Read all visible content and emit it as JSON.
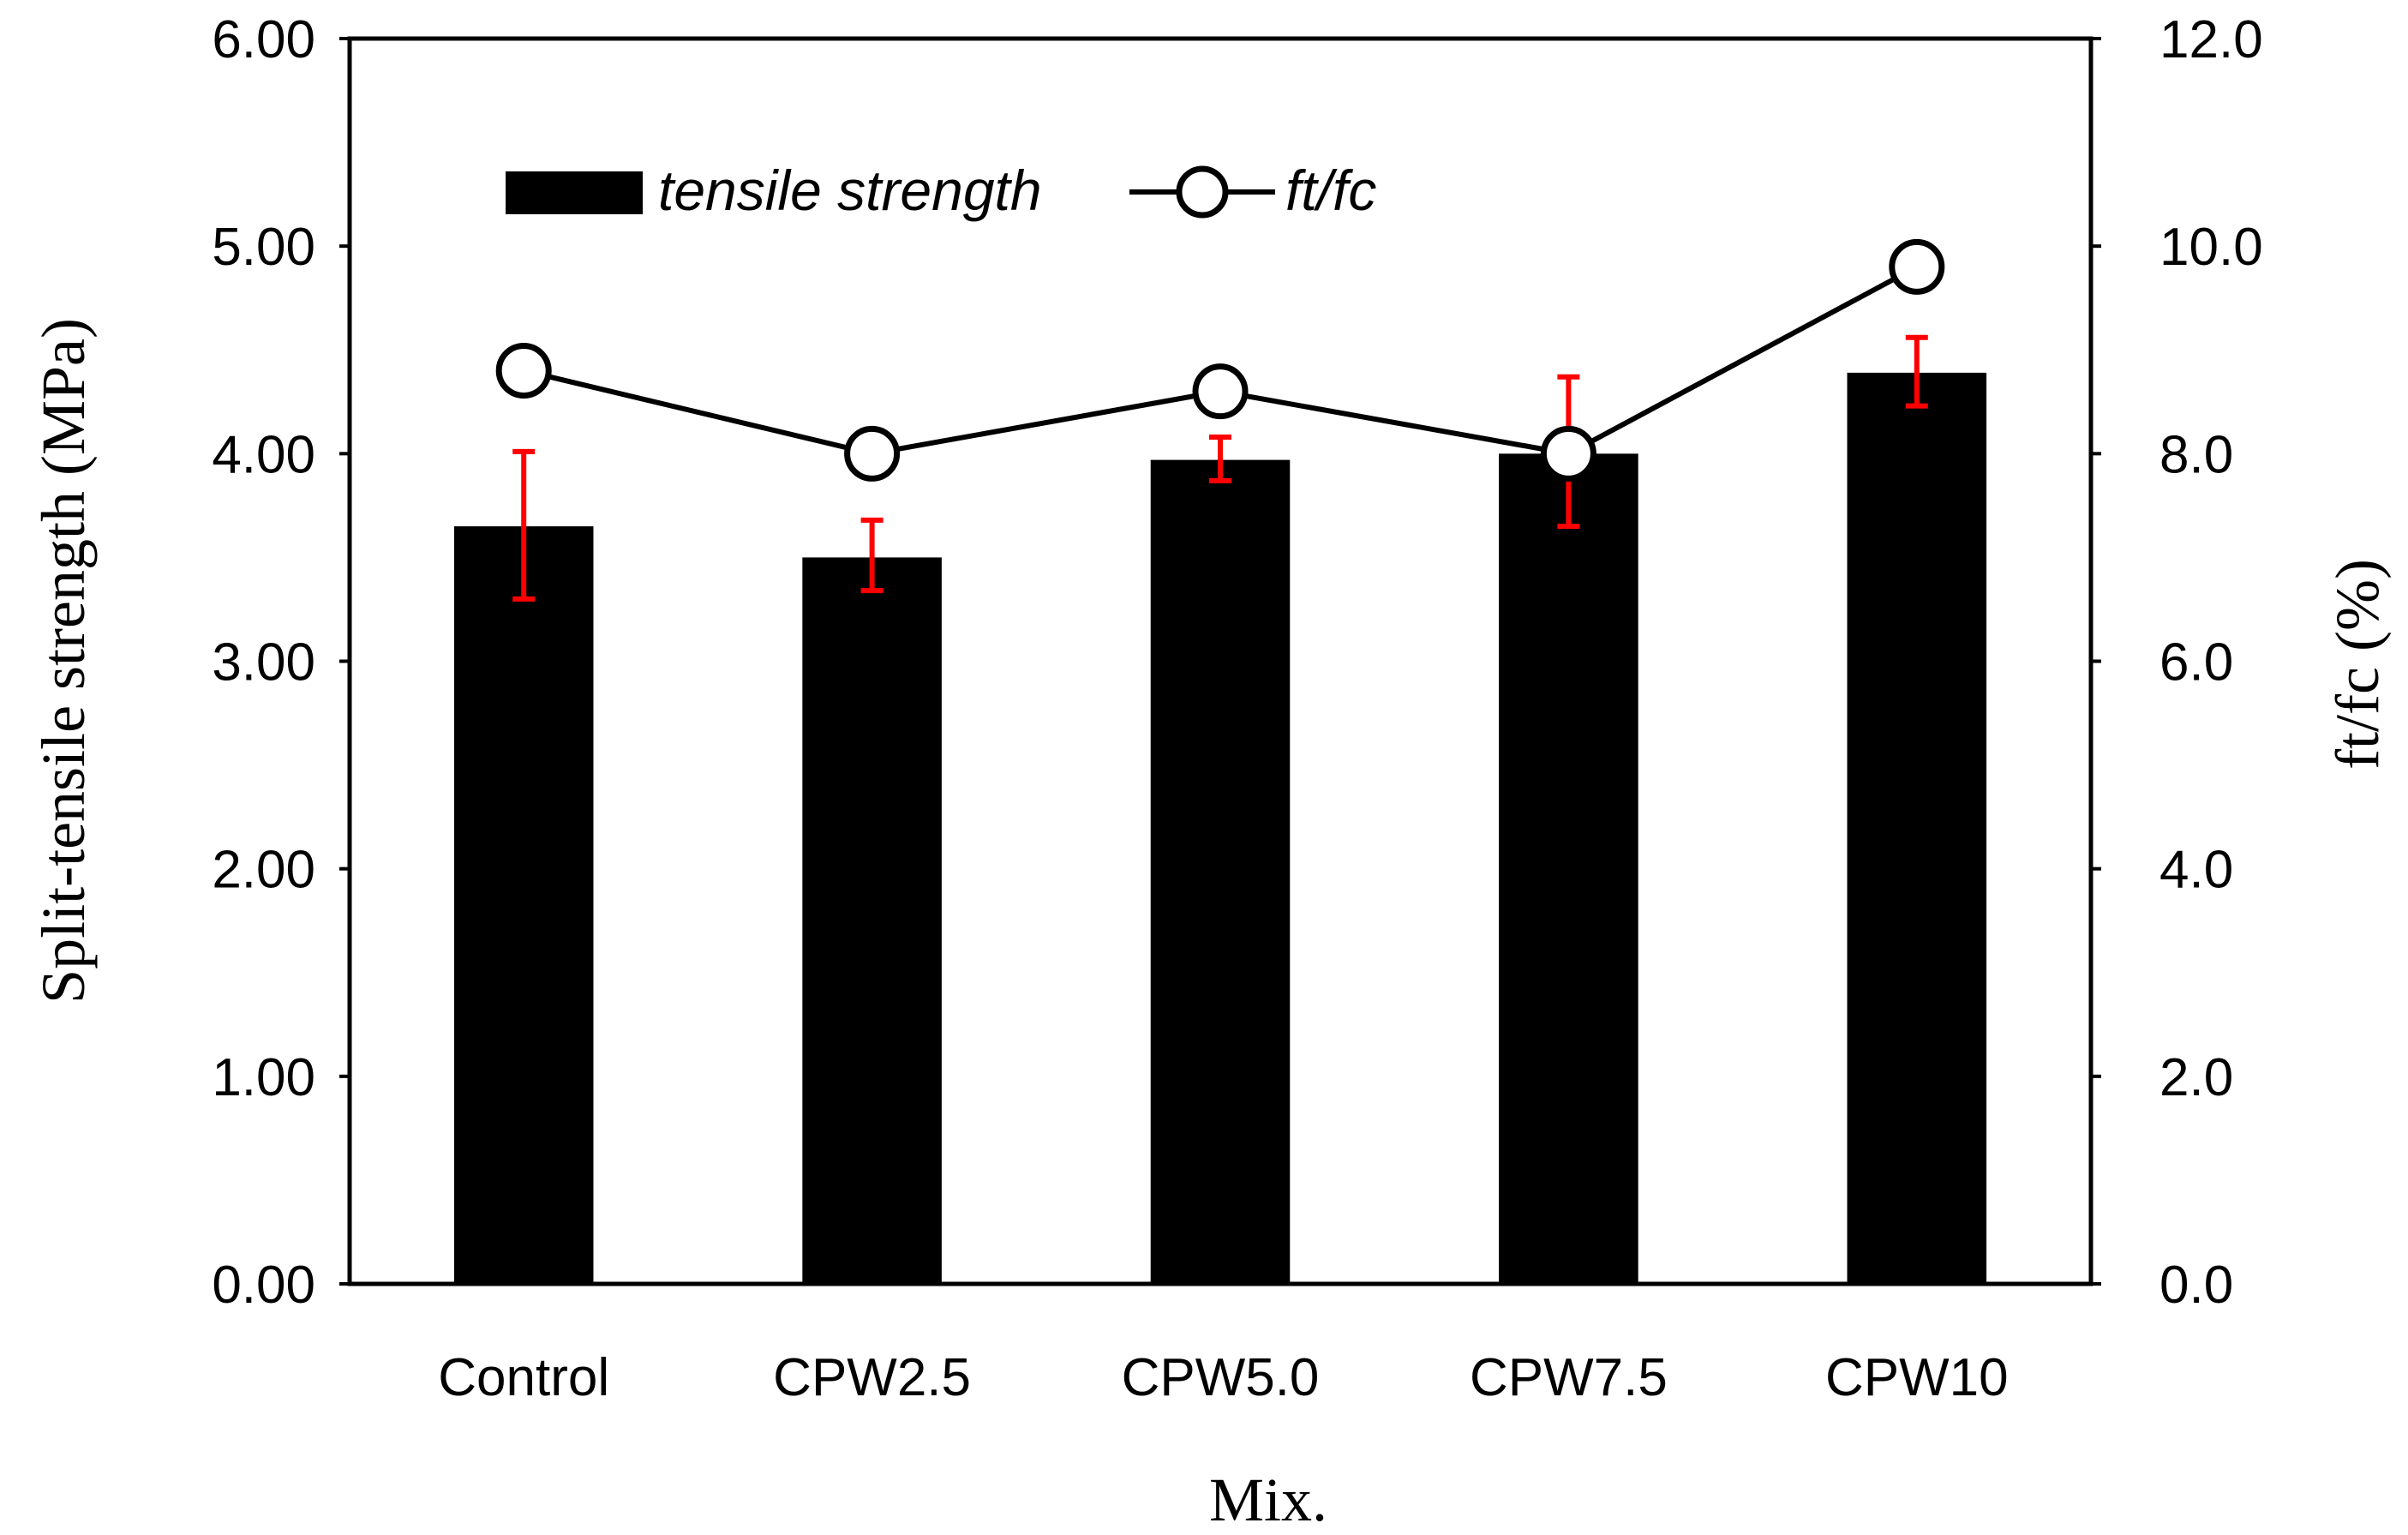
{
  "chart_data": {
    "type": "bar",
    "categories": [
      "Control",
      "CPW2.5",
      "CPW5.0",
      "CPW7.5",
      "CPW10"
    ],
    "series": [
      {
        "name": "tensile strength",
        "type": "bar",
        "axis": "left",
        "values": [
          3.65,
          3.5,
          3.97,
          4.0,
          4.39
        ],
        "error_low": [
          3.3,
          3.34,
          3.87,
          3.65,
          4.23
        ],
        "error_high": [
          4.01,
          3.68,
          4.08,
          4.37,
          4.56
        ]
      },
      {
        "name": "ft/fc",
        "type": "line",
        "axis": "right",
        "values": [
          8.8,
          8.0,
          8.6,
          8.0,
          9.8
        ]
      }
    ],
    "xlabel": "Mix.",
    "ylabel": "Split-tensile strength (MPa)",
    "y2label": "ft/fc (%)",
    "ylim": [
      0,
      6
    ],
    "y2lim": [
      0,
      12
    ],
    "yticks": [
      "0.00",
      "1.00",
      "2.00",
      "3.00",
      "4.00",
      "5.00",
      "6.00"
    ],
    "y2ticks": [
      "0.0",
      "2.0",
      "4.0",
      "6.0",
      "8.0",
      "10.0",
      "12.0"
    ],
    "grid": false,
    "legend_position": "top-left",
    "colors": {
      "bar": "#000000",
      "error": "#ff0000",
      "line": "#000000",
      "marker_fill": "#ffffff"
    }
  }
}
